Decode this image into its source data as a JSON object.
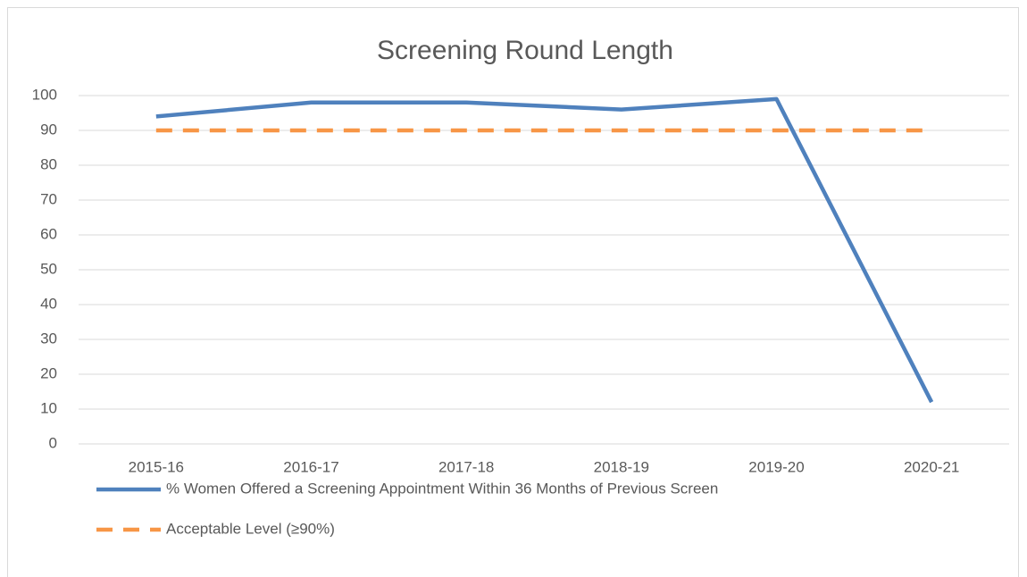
{
  "chart_data": {
    "type": "line",
    "title": "Screening Round Length",
    "categories": [
      "2015-16",
      "2016-17",
      "2017-18",
      "2018-19",
      "2019-20",
      "2020-21"
    ],
    "series": [
      {
        "name": "% Women Offered a Screening Appointment Within 36 Months of Previous Screen",
        "color": "#4f81bd",
        "linestyle": "solid",
        "values": [
          94,
          98,
          98,
          96,
          99,
          12
        ]
      },
      {
        "name": "Acceptable Level (≥90%)",
        "color": "#f79646",
        "linestyle": "dashed",
        "values": [
          90,
          90,
          90,
          90,
          90,
          90
        ]
      }
    ],
    "ylim": [
      0,
      100
    ],
    "yticks": [
      0,
      10,
      20,
      30,
      40,
      50,
      60,
      70,
      80,
      90,
      100
    ],
    "grid": true,
    "legend": "bottom"
  }
}
